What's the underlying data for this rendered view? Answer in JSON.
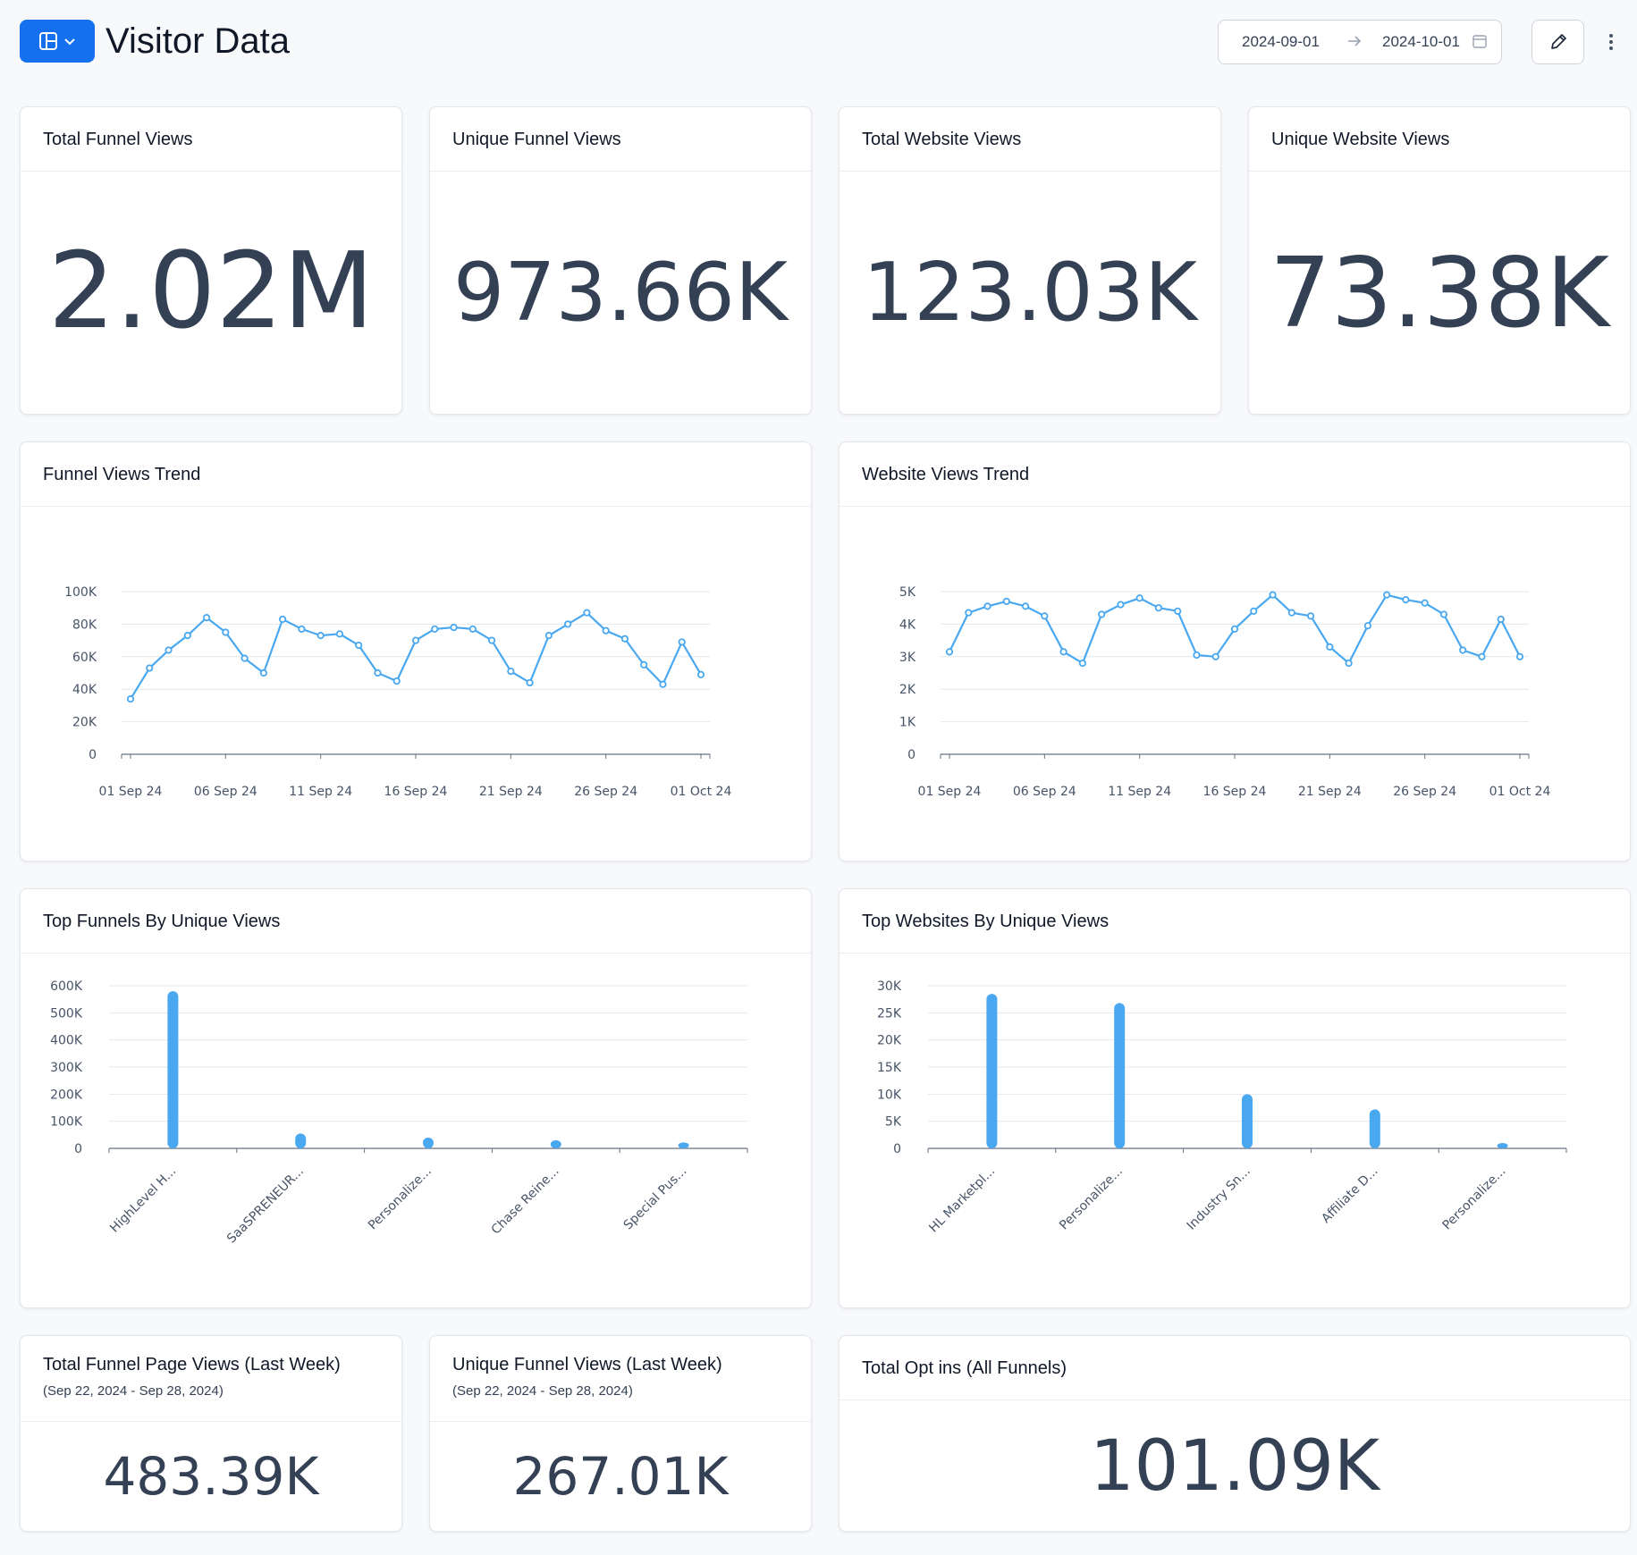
{
  "header": {
    "title": "Visitor Data",
    "layout_button_icon": "layout-icon",
    "date_start": "2024-09-01",
    "date_end": "2024-10-01",
    "accent_color": "#1570ef"
  },
  "kpis": {
    "total_funnel_views": {
      "title": "Total Funnel Views",
      "value": "2.02M"
    },
    "unique_funnel_views": {
      "title": "Unique Funnel Views",
      "value": "973.66K"
    },
    "total_website_views": {
      "title": "Total Website Views",
      "value": "123.03K"
    },
    "unique_website_views": {
      "title": "Unique Website Views",
      "value": "73.38K"
    }
  },
  "bottom": {
    "page_views_last_week": {
      "title": "Total Funnel Page Views (Last Week)",
      "subtitle": "(Sep 22, 2024 - Sep 28, 2024)",
      "value": "483.39K"
    },
    "unique_last_week": {
      "title": "Unique Funnel Views (Last Week)",
      "subtitle": "(Sep 22, 2024 - Sep 28, 2024)",
      "value": "267.01K"
    },
    "opt_ins": {
      "title": "Total Opt ins (All Funnels)",
      "value": "101.09K"
    }
  },
  "chart_data": [
    {
      "id": "funnel-trend",
      "type": "line",
      "title": "Funnel Views Trend",
      "color": "#4aa8f0",
      "ylim": [
        0,
        100000
      ],
      "yticks": [
        "0",
        "20K",
        "40K",
        "60K",
        "80K",
        "100K"
      ],
      "xticks": [
        "01 Sep 24",
        "06 Sep 24",
        "11 Sep 24",
        "16 Sep 24",
        "21 Sep 24",
        "26 Sep 24",
        "01 Oct 24"
      ],
      "values": [
        34000,
        53000,
        64000,
        73000,
        84000,
        75000,
        59000,
        50000,
        83000,
        77000,
        73000,
        74000,
        67000,
        50000,
        45000,
        70000,
        77000,
        78000,
        77000,
        70000,
        51000,
        44000,
        73000,
        80000,
        87000,
        76000,
        71000,
        55000,
        43000,
        69000,
        49000
      ]
    },
    {
      "id": "website-trend",
      "type": "line",
      "title": "Website Views Trend",
      "color": "#4aa8f0",
      "ylim": [
        0,
        5000
      ],
      "yticks": [
        "0",
        "1K",
        "2K",
        "3K",
        "4K",
        "5K"
      ],
      "xticks": [
        "01 Sep 24",
        "06 Sep 24",
        "11 Sep 24",
        "16 Sep 24",
        "21 Sep 24",
        "26 Sep 24",
        "01 Oct 24"
      ],
      "values": [
        3150,
        4350,
        4550,
        4700,
        4550,
        4250,
        3150,
        2800,
        4300,
        4600,
        4800,
        4500,
        4400,
        3050,
        3000,
        3850,
        4400,
        4900,
        4350,
        4250,
        3300,
        2800,
        3950,
        4900,
        4750,
        4650,
        4300,
        3200,
        3000,
        4150,
        3000
      ]
    },
    {
      "id": "top-funnels",
      "type": "bar",
      "title": "Top Funnels By Unique Views",
      "color": "#4aa8f0",
      "ylim": [
        0,
        600000
      ],
      "yticks": [
        "0",
        "100K",
        "200K",
        "300K",
        "400K",
        "500K",
        "600K"
      ],
      "categories": [
        "HighLevel H...",
        "SaaSPRENEUR...",
        "Personalize...",
        "Chase Reine...",
        "Special Pus..."
      ],
      "values": [
        580000,
        55000,
        40000,
        30000,
        22000
      ]
    },
    {
      "id": "top-websites",
      "type": "bar",
      "title": "Top Websites By Unique Views",
      "color": "#4aa8f0",
      "ylim": [
        0,
        30000
      ],
      "yticks": [
        "0",
        "5K",
        "10K",
        "15K",
        "20K",
        "25K",
        "30K"
      ],
      "categories": [
        "HL Marketpl...",
        "Personalize...",
        "Industry Sn...",
        "Affiliate D...",
        "Personalize..."
      ],
      "values": [
        28500,
        26800,
        10000,
        7200,
        500
      ]
    }
  ]
}
